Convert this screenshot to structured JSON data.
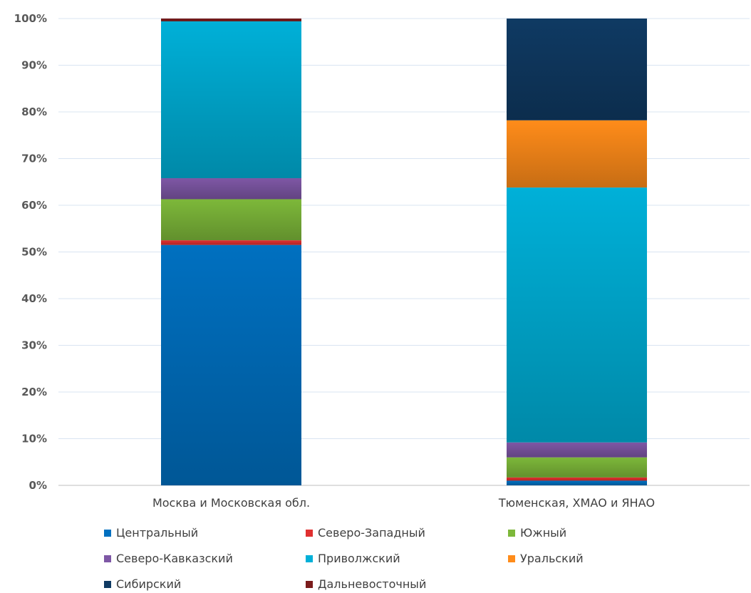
{
  "chart_data": {
    "type": "bar",
    "stacked": "percent",
    "categories": [
      "Москва и Московская обл.",
      "Тюменская, ХМАО и ЯНАО"
    ],
    "series": [
      {
        "name": "Центральный",
        "color": "#0070C0",
        "values": [
          51.5,
          1.0
        ]
      },
      {
        "name": "Северо-Западный",
        "color": "#E03030",
        "values": [
          1.0,
          0.7
        ]
      },
      {
        "name": "Южный",
        "color": "#7DB83A",
        "values": [
          8.8,
          4.3
        ]
      },
      {
        "name": "Северо-Кавказский",
        "color": "#7E57A5",
        "values": [
          4.5,
          3.2
        ]
      },
      {
        "name": "Приволжский",
        "color": "#00B0D8",
        "values": [
          33.6,
          54.6
        ]
      },
      {
        "name": "Уральский",
        "color": "#FF8C1A",
        "values": [
          0.0,
          14.4
        ]
      },
      {
        "name": "Сибирский",
        "color": "#0F3A63",
        "values": [
          0.0,
          21.8
        ]
      },
      {
        "name": "Дальневосточный",
        "color": "#7B1C1C",
        "values": [
          0.6,
          0.0
        ]
      }
    ],
    "yticks": [
      "0%",
      "10%",
      "20%",
      "30%",
      "40%",
      "50%",
      "60%",
      "70%",
      "80%",
      "90%",
      "100%"
    ],
    "ylim": [
      0,
      100
    ],
    "grid": true,
    "legend_position": "bottom"
  }
}
